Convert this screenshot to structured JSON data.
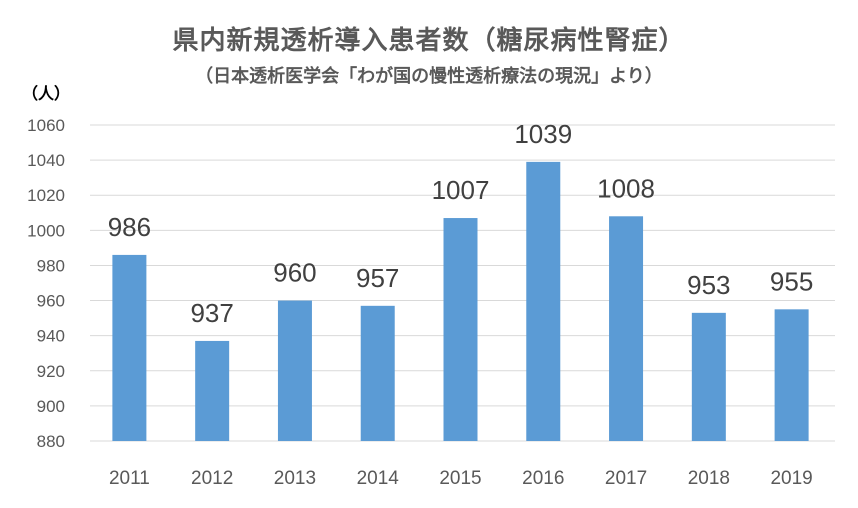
{
  "chart_data": {
    "type": "bar",
    "title": "県内新規透析導入患者数（糖尿病性腎症）",
    "subtitle": "（日本透析医学会「わが国の慢性透析療法の現況」より）",
    "ylabel": "（人）",
    "xlabel": "",
    "categories": [
      "2011",
      "2012",
      "2013",
      "2014",
      "2015",
      "2016",
      "2017",
      "2018",
      "2019"
    ],
    "values": [
      986,
      937,
      960,
      957,
      1007,
      1039,
      1008,
      953,
      955
    ],
    "ylim": [
      880,
      1060
    ],
    "yticks": [
      880,
      900,
      920,
      940,
      960,
      980,
      1000,
      1020,
      1040,
      1060
    ],
    "grid": true,
    "legend": "none",
    "bar_color": "#5b9bd5",
    "data_labels": true
  }
}
